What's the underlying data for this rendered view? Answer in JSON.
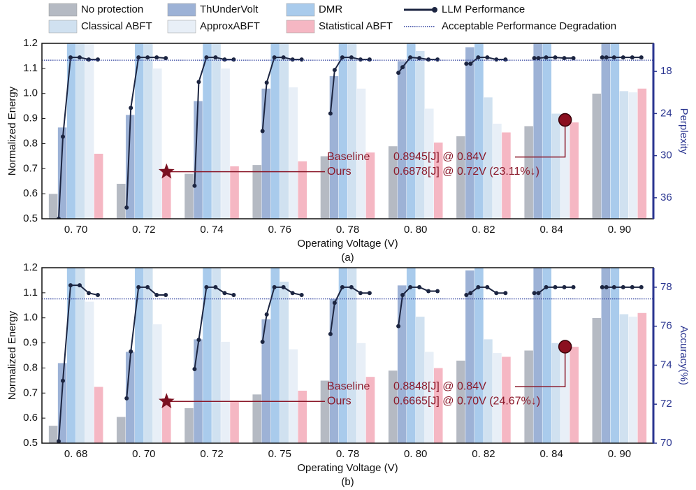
{
  "chart_data": [
    {
      "type": "bar",
      "caption": "(a)",
      "x_label": "Operating Voltage (V)",
      "y_label": "Normalized Energy",
      "y2_label": "Perplexity",
      "categories": [
        "0. 70",
        "0. 72",
        "0. 74",
        "0. 76",
        "0. 78",
        "0. 80",
        "0. 82",
        "0. 84",
        "0. 90"
      ],
      "series": [
        {
          "name": "No protection",
          "color": "#b5bac3",
          "values": [
            0.6,
            0.64,
            0.68,
            0.715,
            0.75,
            0.79,
            0.83,
            0.87,
            1.0
          ]
        },
        {
          "name": "ThUnderVolt",
          "color": "#9db2d6",
          "values": [
            0.865,
            0.915,
            0.97,
            1.02,
            1.07,
            1.13,
            1.185,
            1.25,
            1.25
          ]
        },
        {
          "name": "DMR",
          "color": "#a9cbec",
          "values": [
            1.25,
            1.25,
            1.25,
            1.25,
            1.25,
            1.25,
            1.25,
            1.25,
            1.25
          ]
        },
        {
          "name": "Classical ABFT",
          "color": "#d0e1f0",
          "values": [
            1.25,
            1.25,
            1.25,
            1.25,
            1.25,
            1.17,
            0.985,
            0.92,
            1.01
          ]
        },
        {
          "name": "ApproxABFT",
          "color": "#e8eff7",
          "values": [
            1.25,
            1.1,
            1.1,
            1.025,
            1.02,
            0.94,
            0.88,
            0.92,
            1.005
          ]
        },
        {
          "name": "Statistical ABFT",
          "color": "#f5b7c3",
          "values": [
            0.76,
            0.69,
            0.71,
            0.73,
            0.765,
            0.805,
            0.845,
            0.885,
            1.02
          ]
        }
      ],
      "ylim": [
        0.5,
        1.2
      ],
      "yticks": [
        0.5,
        0.6,
        0.7,
        0.8,
        0.9,
        {
          "value": 1,
          "label": "1.0"
        },
        1.1,
        1.2
      ],
      "y2lim": [
        39,
        14
      ],
      "y2ticks": [
        18,
        24,
        30,
        36
      ],
      "performance": {
        "name": "LLM Performance",
        "color": "#1c2541",
        "axis": "y2",
        "values": [
          [
            39.0,
            27.3,
            16.0,
            16.0,
            16.3,
            16.3
          ],
          [
            37.4,
            23.2,
            16.0,
            16.0,
            16.0,
            16.1
          ],
          [
            34.3,
            19.5,
            16.0,
            16.0,
            16.3,
            16.3
          ],
          [
            26.5,
            19.6,
            16.0,
            16.0,
            16.3,
            16.3
          ],
          [
            24.0,
            17.8,
            16.0,
            16.0,
            16.3,
            16.3
          ],
          [
            18.2,
            17.4,
            16.0,
            16.1,
            16.3,
            16.3
          ],
          [
            16.9,
            16.9,
            16.0,
            16.0,
            16.3,
            16.3
          ],
          [
            16.1,
            16.1,
            16.0,
            16.0,
            16.1,
            16.1
          ],
          [
            16.0,
            16.0,
            16.0,
            16.0,
            16.0,
            16.0
          ]
        ]
      },
      "threshold": {
        "name": "Acceptable Performance Degradation",
        "color": "#2a3c9c",
        "axis": "y2",
        "value": 16.4
      },
      "annotations": [
        {
          "label": "Baseline",
          "text": "0.8945[J] @ 0.84V",
          "value": 0.8945,
          "category": "0. 84"
        },
        {
          "label": "Ours",
          "text": "0.6878[J] @ 0.72V (23.11%↓)",
          "value": 0.6878,
          "category": "0. 72"
        }
      ]
    },
    {
      "type": "bar",
      "caption": "(b)",
      "x_label": "Operating Voltage (V)",
      "y_label": "Normalized Energy",
      "y2_label": "Accuracy(%)",
      "categories": [
        "0. 68",
        "0. 70",
        "0. 72",
        "0. 75",
        "0. 78",
        "0. 80",
        "0. 82",
        "0. 84",
        "0. 90"
      ],
      "series": [
        {
          "values": [
            0.57,
            0.605,
            0.64,
            0.695,
            0.75,
            0.79,
            0.83,
            0.87,
            1.0
          ]
        },
        {
          "values": [
            0.82,
            0.865,
            0.915,
            0.995,
            1.075,
            1.13,
            1.19,
            1.25,
            1.25
          ]
        },
        {
          "values": [
            1.25,
            1.25,
            1.25,
            1.25,
            1.25,
            1.25,
            1.25,
            1.25,
            1.25
          ]
        },
        {
          "values": [
            1.25,
            1.25,
            1.25,
            1.145,
            1.25,
            1.005,
            0.915,
            0.9,
            1.015
          ]
        },
        {
          "values": [
            1.065,
            0.975,
            0.905,
            0.875,
            0.9,
            0.865,
            0.86,
            0.9,
            1.005
          ]
        },
        {
          "values": [
            0.725,
            0.68,
            0.67,
            0.71,
            0.765,
            0.8,
            0.845,
            0.885,
            1.02
          ]
        }
      ],
      "ylim": [
        0.5,
        1.2
      ],
      "yticks": [
        0.5,
        0.6,
        0.7,
        0.8,
        0.9,
        {
          "value": 1,
          "label": "1.0"
        },
        1.1,
        1.2
      ],
      "y2lim": [
        70,
        79
      ],
      "y2ticks": [
        70,
        72,
        74,
        76,
        78
      ],
      "performance": {
        "axis": "y2",
        "values": [
          [
            70.1,
            73.2,
            78.1,
            78.1,
            77.7,
            77.6
          ],
          [
            72.3,
            74.7,
            78.0,
            78.0,
            77.6,
            77.6
          ],
          [
            73.8,
            75.3,
            78.0,
            78.0,
            77.7,
            77.6
          ],
          [
            75.2,
            76.6,
            78.0,
            78.0,
            77.7,
            77.6
          ],
          [
            75.6,
            77.2,
            78.0,
            78.0,
            77.7,
            77.7
          ],
          [
            76.0,
            77.6,
            78.0,
            78.0,
            77.8,
            77.8
          ],
          [
            77.6,
            77.7,
            78.0,
            78.0,
            77.7,
            77.7
          ],
          [
            77.7,
            77.7,
            78.0,
            78.0,
            78.0,
            78.0
          ],
          [
            78.0,
            78.0,
            78.0,
            78.0,
            78.0,
            78.0
          ]
        ]
      },
      "threshold": {
        "axis": "y2",
        "value": 77.4
      },
      "annotations": [
        {
          "label": "Baseline",
          "text": "0.8848[J] @ 0.84V",
          "value": 0.8848,
          "category": "0. 84"
        },
        {
          "label": "Ours",
          "text": "0.6665[J] @ 0.70V (24.67%↓)",
          "value": 0.6665,
          "category": "0. 70"
        }
      ]
    }
  ]
}
